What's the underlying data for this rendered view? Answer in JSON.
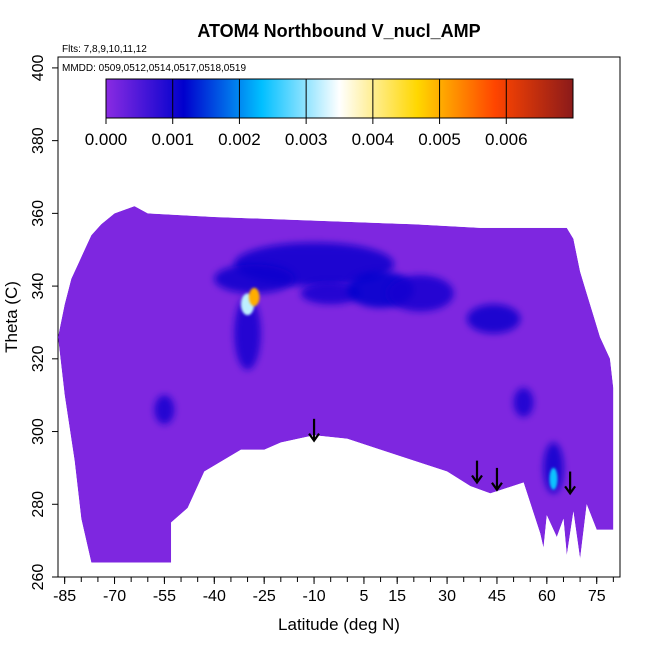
{
  "chart_data": {
    "type": "heatmap",
    "title": "ATOM4 Northbound V_nucl_AMP",
    "xlabel": "Latitude (deg N)",
    "ylabel": "Theta (C)",
    "annotations": {
      "flights": "Flts: 7,8,9,10,11,12",
      "dates": "MMDD: 0509,0512,0514,0517,0518,0519"
    },
    "xlim": [
      -87,
      82
    ],
    "ylim": [
      260,
      403
    ],
    "xticks": [
      -85,
      -70,
      -55,
      -40,
      -25,
      -10,
      5,
      15,
      30,
      45,
      60,
      75
    ],
    "yticks": [
      260,
      280,
      300,
      320,
      340,
      360,
      380,
      400
    ],
    "colorbar": {
      "ticks": [
        "0.000",
        "0.001",
        "0.002",
        "0.003",
        "0.004",
        "0.005",
        "0.006"
      ],
      "range": [
        0,
        0.007
      ],
      "colors": [
        "#8a2be2",
        "#0000cd",
        "#00bfff",
        "#ffffff",
        "#ffd700",
        "#ff4500",
        "#8b1a1a"
      ]
    },
    "background_value": 0.0001,
    "domain_top": [
      [
        -85,
        335
      ],
      [
        -83,
        342
      ],
      [
        -81,
        346
      ],
      [
        -79,
        350
      ],
      [
        -77,
        354
      ],
      [
        -74,
        357
      ],
      [
        -70,
        360
      ],
      [
        -64,
        362
      ],
      [
        -60,
        360
      ],
      [
        -40,
        359
      ],
      [
        -10,
        358
      ],
      [
        20,
        357
      ],
      [
        40,
        356
      ],
      [
        66,
        356
      ],
      [
        68,
        353
      ],
      [
        70,
        344
      ],
      [
        72,
        338
      ],
      [
        74,
        332
      ],
      [
        76,
        326
      ],
      [
        79,
        320
      ],
      [
        80,
        312
      ]
    ],
    "domain_bottom": [
      [
        -87,
        326
      ],
      [
        -85,
        310
      ],
      [
        -82,
        292
      ],
      [
        -80,
        276
      ],
      [
        -77,
        264
      ],
      [
        -53,
        264
      ],
      [
        -53,
        275
      ],
      [
        -48,
        279
      ],
      [
        -43,
        289
      ],
      [
        -32,
        295
      ],
      [
        -25,
        295
      ],
      [
        -20,
        297
      ],
      [
        -10,
        299
      ],
      [
        0,
        298
      ],
      [
        10,
        295
      ],
      [
        20,
        292
      ],
      [
        30,
        289
      ],
      [
        37,
        285
      ],
      [
        43,
        283
      ],
      [
        53,
        286
      ],
      [
        58,
        272
      ],
      [
        59,
        268
      ],
      [
        60,
        277
      ],
      [
        63,
        271
      ],
      [
        65,
        276
      ],
      [
        66,
        266
      ],
      [
        68,
        278
      ],
      [
        70,
        265
      ],
      [
        72,
        280
      ],
      [
        75,
        273
      ],
      [
        80,
        273
      ]
    ],
    "features": [
      {
        "lat": -10,
        "theta": 346,
        "rx": 24,
        "ry": 6,
        "value": 0.0011
      },
      {
        "lat": -28,
        "theta": 342,
        "rx": 12,
        "ry": 4,
        "value": 0.0011
      },
      {
        "lat": -5,
        "theta": 338,
        "rx": 9,
        "ry": 3,
        "value": 0.001
      },
      {
        "lat": 10,
        "theta": 339,
        "rx": 10,
        "ry": 5,
        "value": 0.0012
      },
      {
        "lat": 22,
        "theta": 338,
        "rx": 10,
        "ry": 5,
        "value": 0.001
      },
      {
        "lat": 44,
        "theta": 331,
        "rx": 8,
        "ry": 4,
        "value": 0.0011
      },
      {
        "lat": -30,
        "theta": 327,
        "rx": 4,
        "ry": 10,
        "value": 0.001
      },
      {
        "lat": 53,
        "theta": 308,
        "rx": 3,
        "ry": 4,
        "value": 0.001
      },
      {
        "lat": -55,
        "theta": 306,
        "rx": 3,
        "ry": 4,
        "value": 0.001
      },
      {
        "lat": 62,
        "theta": 290,
        "rx": 3,
        "ry": 7,
        "value": 0.0011
      },
      {
        "lat": -30,
        "theta": 335,
        "rx": 2,
        "ry": 3,
        "value": 0.0032
      },
      {
        "lat": -28,
        "theta": 337,
        "rx": 1.6,
        "ry": 2.5,
        "value": 0.005
      },
      {
        "lat": 62,
        "theta": 287,
        "rx": 1.2,
        "ry": 3,
        "value": 0.0024
      }
    ],
    "arrows": [
      {
        "lat": -10,
        "theta_top": 303.5,
        "theta_tip": 297.5
      },
      {
        "lat": 39,
        "theta_top": 292,
        "theta_tip": 286
      },
      {
        "lat": 45,
        "theta_top": 290,
        "theta_tip": 284
      },
      {
        "lat": 67,
        "theta_top": 289,
        "theta_tip": 283
      }
    ],
    "grid": false,
    "legend": "colorbar top"
  }
}
